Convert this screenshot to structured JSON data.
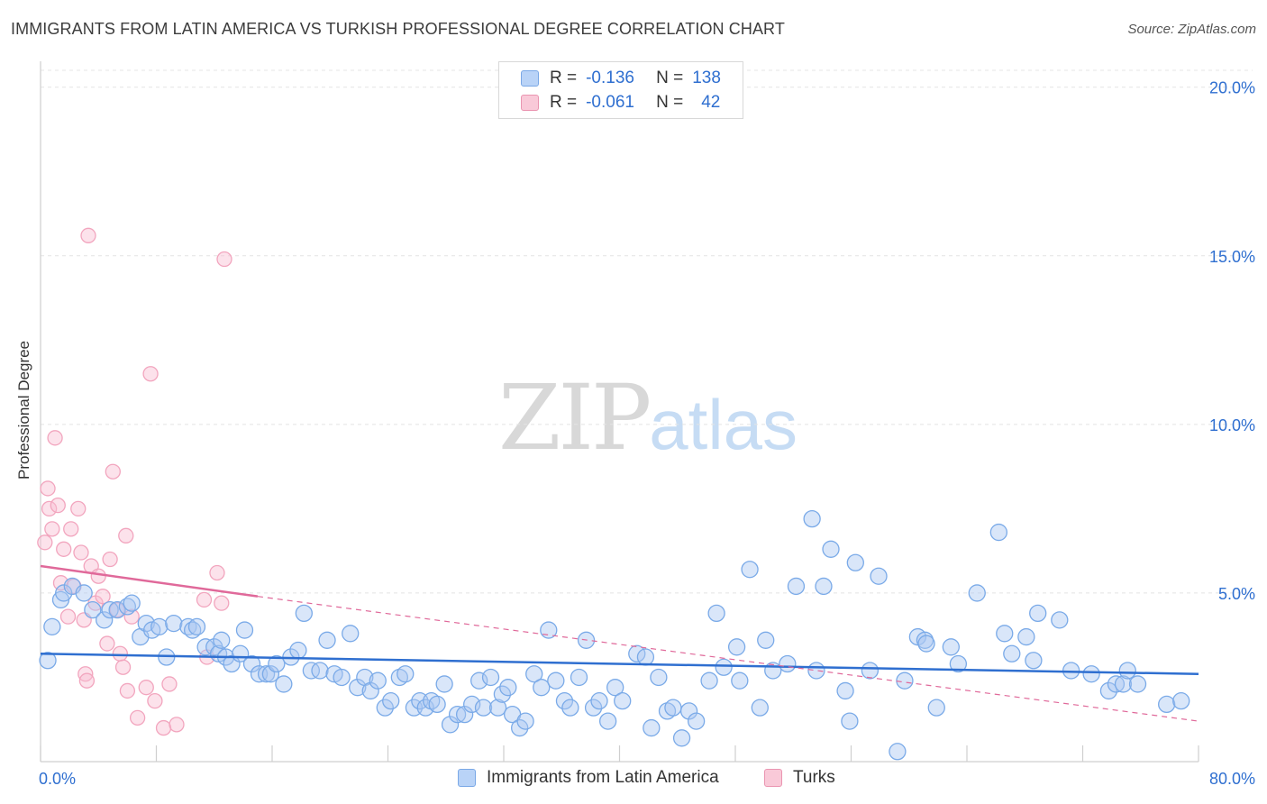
{
  "title": "IMMIGRANTS FROM LATIN AMERICA VS TURKISH PROFESSIONAL DEGREE CORRELATION CHART",
  "source": "Source: ZipAtlas.com",
  "watermark": {
    "zip": "ZIP",
    "atlas": "atlas"
  },
  "legend": {
    "rows": [
      {
        "r_label": "R =",
        "r_value": "-0.136",
        "n_label": "N =",
        "n_value": "138",
        "color": "#b9d3f7"
      },
      {
        "r_label": "R =",
        "r_value": "-0.061",
        "n_label": "N =",
        "n_value": "42",
        "color": "#f9c9d8"
      }
    ]
  },
  "chart_data": {
    "type": "scatter",
    "title": "IMMIGRANTS FROM LATIN AMERICA VS TURKISH PROFESSIONAL DEGREE CORRELATION CHART",
    "xlabel": "",
    "ylabel": "Professional Degree",
    "xlim": [
      0,
      80
    ],
    "ylim": [
      0,
      20.5
    ],
    "x_tick_labels": [
      "0.0%",
      "80.0%"
    ],
    "y_ticks": [
      5,
      10,
      15,
      20
    ],
    "y_tick_labels": [
      "5.0%",
      "10.0%",
      "15.0%",
      "20.0%"
    ],
    "grid": true,
    "legend_position": "bottom",
    "series": [
      {
        "name": "Immigrants from Latin America",
        "color": "#7aaae8",
        "line_color": "#2f6fd0",
        "trend": {
          "x": [
            0,
            80
          ],
          "y": [
            3.2,
            2.6
          ],
          "dashed_extension": false
        },
        "points": [
          [
            0.5,
            3.0
          ],
          [
            0.8,
            4.0
          ],
          [
            1.4,
            4.8
          ],
          [
            1.6,
            5.0
          ],
          [
            2.2,
            5.2
          ],
          [
            3.0,
            5.0
          ],
          [
            3.6,
            4.5
          ],
          [
            4.4,
            4.2
          ],
          [
            4.8,
            4.5
          ],
          [
            5.3,
            4.5
          ],
          [
            6.0,
            4.6
          ],
          [
            6.3,
            4.7
          ],
          [
            6.9,
            3.7
          ],
          [
            7.3,
            4.1
          ],
          [
            7.7,
            3.9
          ],
          [
            8.2,
            4.0
          ],
          [
            8.7,
            3.1
          ],
          [
            9.2,
            4.1
          ],
          [
            10.2,
            4.0
          ],
          [
            10.5,
            3.9
          ],
          [
            10.8,
            4.0
          ],
          [
            11.4,
            3.4
          ],
          [
            12.0,
            3.4
          ],
          [
            12.3,
            3.2
          ],
          [
            12.5,
            3.6
          ],
          [
            12.8,
            3.1
          ],
          [
            13.2,
            2.9
          ],
          [
            13.8,
            3.2
          ],
          [
            14.1,
            3.9
          ],
          [
            14.6,
            2.9
          ],
          [
            15.1,
            2.6
          ],
          [
            15.6,
            2.6
          ],
          [
            15.9,
            2.6
          ],
          [
            16.3,
            2.9
          ],
          [
            16.8,
            2.3
          ],
          [
            17.3,
            3.1
          ],
          [
            17.8,
            3.3
          ],
          [
            18.2,
            4.4
          ],
          [
            18.7,
            2.7
          ],
          [
            19.3,
            2.7
          ],
          [
            19.8,
            3.6
          ],
          [
            20.3,
            2.6
          ],
          [
            20.8,
            2.5
          ],
          [
            21.4,
            3.8
          ],
          [
            21.9,
            2.2
          ],
          [
            22.4,
            2.5
          ],
          [
            22.8,
            2.1
          ],
          [
            23.3,
            2.4
          ],
          [
            23.8,
            1.6
          ],
          [
            24.2,
            1.8
          ],
          [
            24.8,
            2.5
          ],
          [
            25.2,
            2.6
          ],
          [
            25.8,
            1.6
          ],
          [
            26.2,
            1.8
          ],
          [
            26.6,
            1.6
          ],
          [
            27.0,
            1.8
          ],
          [
            27.4,
            1.7
          ],
          [
            27.9,
            2.3
          ],
          [
            28.3,
            1.1
          ],
          [
            28.8,
            1.4
          ],
          [
            29.3,
            1.4
          ],
          [
            29.8,
            1.7
          ],
          [
            30.3,
            2.4
          ],
          [
            30.6,
            1.6
          ],
          [
            31.1,
            2.5
          ],
          [
            31.6,
            1.6
          ],
          [
            31.9,
            2.0
          ],
          [
            32.3,
            2.2
          ],
          [
            32.6,
            1.4
          ],
          [
            33.1,
            1.0
          ],
          [
            33.5,
            1.2
          ],
          [
            34.1,
            2.6
          ],
          [
            34.6,
            2.2
          ],
          [
            35.1,
            3.9
          ],
          [
            35.6,
            2.4
          ],
          [
            36.2,
            1.8
          ],
          [
            36.6,
            1.6
          ],
          [
            37.2,
            2.5
          ],
          [
            37.7,
            3.6
          ],
          [
            38.2,
            1.6
          ],
          [
            38.6,
            1.8
          ],
          [
            39.2,
            1.2
          ],
          [
            39.7,
            2.2
          ],
          [
            40.2,
            1.8
          ],
          [
            41.2,
            3.2
          ],
          [
            41.8,
            3.1
          ],
          [
            42.2,
            1.0
          ],
          [
            42.7,
            2.5
          ],
          [
            43.3,
            1.5
          ],
          [
            43.7,
            1.6
          ],
          [
            44.3,
            0.7
          ],
          [
            44.8,
            1.5
          ],
          [
            45.3,
            1.2
          ],
          [
            46.2,
            2.4
          ],
          [
            46.7,
            4.4
          ],
          [
            47.2,
            2.8
          ],
          [
            48.1,
            3.4
          ],
          [
            48.3,
            2.4
          ],
          [
            49.0,
            5.7
          ],
          [
            49.7,
            1.6
          ],
          [
            50.1,
            3.6
          ],
          [
            50.6,
            2.7
          ],
          [
            51.6,
            2.9
          ],
          [
            52.2,
            5.2
          ],
          [
            53.3,
            7.2
          ],
          [
            53.6,
            2.7
          ],
          [
            54.1,
            5.2
          ],
          [
            54.6,
            6.3
          ],
          [
            55.6,
            2.1
          ],
          [
            55.9,
            1.2
          ],
          [
            56.3,
            5.9
          ],
          [
            57.3,
            2.7
          ],
          [
            57.9,
            5.5
          ],
          [
            59.2,
            0.3
          ],
          [
            59.7,
            2.4
          ],
          [
            60.6,
            3.7
          ],
          [
            61.1,
            3.6
          ],
          [
            61.2,
            3.5
          ],
          [
            61.9,
            1.6
          ],
          [
            62.9,
            3.4
          ],
          [
            63.4,
            2.9
          ],
          [
            64.7,
            5.0
          ],
          [
            66.2,
            6.8
          ],
          [
            66.6,
            3.8
          ],
          [
            67.1,
            3.2
          ],
          [
            68.1,
            3.7
          ],
          [
            68.6,
            3.0
          ],
          [
            68.9,
            4.4
          ],
          [
            70.4,
            4.2
          ],
          [
            71.2,
            2.7
          ],
          [
            72.6,
            2.6
          ],
          [
            73.8,
            2.1
          ],
          [
            74.3,
            2.3
          ],
          [
            74.8,
            2.3
          ],
          [
            75.1,
            2.7
          ],
          [
            75.8,
            2.3
          ],
          [
            77.8,
            1.7
          ],
          [
            78.8,
            1.8
          ]
        ]
      },
      {
        "name": "Turks",
        "color": "#f2a5be",
        "line_color": "#e0699a",
        "trend": {
          "x": [
            0,
            15
          ],
          "y": [
            5.8,
            4.9
          ],
          "dashed_extension": true,
          "dashed_to": [
            80,
            1.2
          ]
        },
        "points": [
          [
            0.3,
            6.5
          ],
          [
            0.5,
            8.1
          ],
          [
            0.6,
            7.5
          ],
          [
            0.8,
            6.9
          ],
          [
            1.0,
            9.6
          ],
          [
            1.2,
            7.6
          ],
          [
            1.4,
            5.3
          ],
          [
            1.6,
            6.3
          ],
          [
            1.9,
            4.3
          ],
          [
            2.1,
            6.9
          ],
          [
            2.3,
            5.2
          ],
          [
            2.6,
            7.5
          ],
          [
            2.8,
            6.2
          ],
          [
            3.0,
            4.2
          ],
          [
            3.1,
            2.6
          ],
          [
            3.2,
            2.4
          ],
          [
            3.5,
            5.8
          ],
          [
            3.8,
            4.7
          ],
          [
            4.0,
            5.5
          ],
          [
            4.3,
            4.9
          ],
          [
            4.6,
            3.5
          ],
          [
            4.8,
            6.0
          ],
          [
            5.0,
            8.6
          ],
          [
            5.3,
            4.5
          ],
          [
            5.5,
            3.2
          ],
          [
            5.7,
            2.8
          ],
          [
            5.9,
            6.7
          ],
          [
            6.0,
            2.1
          ],
          [
            6.3,
            4.3
          ],
          [
            6.7,
            1.3
          ],
          [
            7.3,
            2.2
          ],
          [
            7.6,
            11.5
          ],
          [
            7.9,
            1.8
          ],
          [
            8.5,
            1.0
          ],
          [
            8.9,
            2.3
          ],
          [
            9.4,
            1.1
          ],
          [
            11.3,
            4.8
          ],
          [
            11.5,
            3.1
          ],
          [
            12.2,
            5.6
          ],
          [
            12.5,
            4.7
          ],
          [
            12.7,
            14.9
          ],
          [
            3.3,
            15.6
          ]
        ]
      }
    ]
  },
  "bottom_legend": [
    {
      "label": "Immigrants from Latin America",
      "color": "#b9d3f7"
    },
    {
      "label": "Turks",
      "color": "#f9c9d8"
    }
  ]
}
